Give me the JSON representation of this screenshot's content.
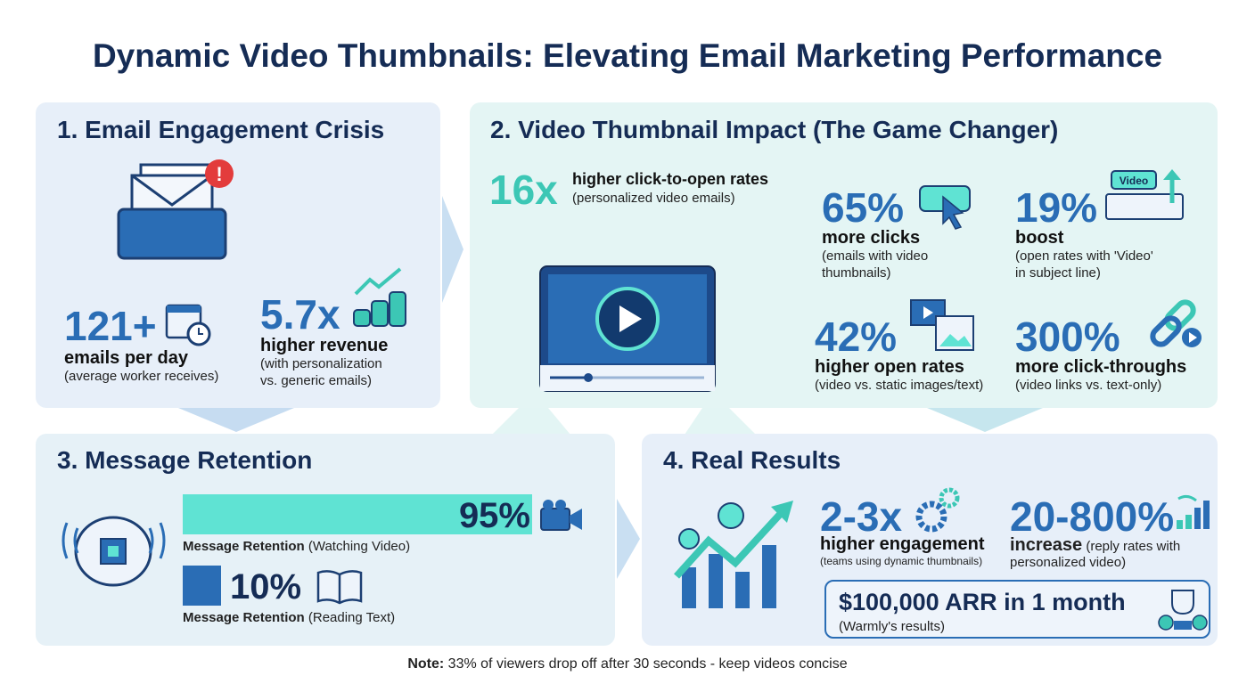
{
  "title": "Dynamic Video Thumbnails: Elevating Email Marketing Performance",
  "colors": {
    "navy": "#152c55",
    "blue": "#2a6db5",
    "teal": "#3cc7b5"
  },
  "section1": {
    "title": "1. Email Engagement Crisis",
    "stat1": {
      "value": "121+",
      "label": "emails per day",
      "sub": "(average worker receives)",
      "icon": "calendar-clock-icon"
    },
    "stat2": {
      "value": "5.7x",
      "label": "higher revenue",
      "sub1": "(with personalization",
      "sub2": "vs. generic emails)",
      "icon": "coins-growth-icon"
    }
  },
  "section2": {
    "title": "2. Video Thumbnail Impact (The Game Changer)",
    "hero": {
      "value": "16x",
      "label": "higher click-to-open rates",
      "sub": "(personalized video emails)"
    },
    "stats": [
      {
        "value": "65%",
        "label": "more clicks",
        "sub1": "(emails with video",
        "sub2": "thumbnails)",
        "icon": "cursor-click-icon"
      },
      {
        "value": "19%",
        "label": "boost",
        "sub1": "(open rates with 'Video'",
        "sub2": "in subject line)",
        "icon_text": "Video",
        "icon": "subject-line-icon"
      },
      {
        "value": "42%",
        "label": "higher open rates",
        "sub1": "(video vs. static images/text)",
        "icon": "video-vs-image-icon"
      },
      {
        "value": "300%",
        "label": "more click-throughs",
        "sub1": "(video links vs. text-only)",
        "icon": "link-play-icon"
      }
    ]
  },
  "section3": {
    "title": "3. Message Retention",
    "bars": [
      {
        "value": "95%",
        "percent": 95,
        "label_bold": "Message Retention",
        "label": " (Watching Video)"
      },
      {
        "value": "10%",
        "percent": 10,
        "label_bold": "Message Retention",
        "label": " (Reading Text)"
      }
    ]
  },
  "section4": {
    "title": "4. Real Results",
    "stat1": {
      "value": "2-3x",
      "label": "higher engagement",
      "sub": "(teams using dynamic thumbnails)"
    },
    "stat2": {
      "value": "20-800%",
      "label": "increase",
      "sub_inline": " (reply rates with",
      "sub": "personalized video)"
    },
    "highlight": {
      "value": "$100,000 ARR in 1 month",
      "sub": "(Warmly's results)"
    }
  },
  "note": {
    "bold": "Note:",
    "text": " 33% of viewers drop off after 30 seconds - keep videos concise"
  }
}
